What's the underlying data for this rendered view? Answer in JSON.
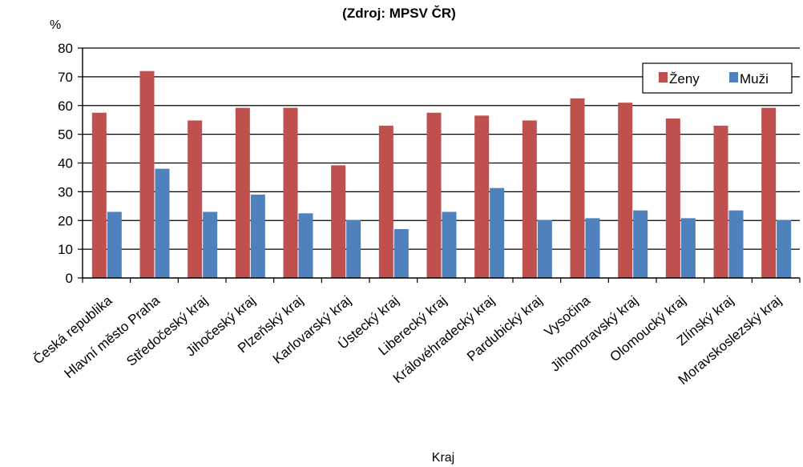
{
  "chart_data": {
    "type": "bar",
    "title": "(Zdroj: MPSV ČR)",
    "ylabel": "%",
    "xlabel": "Kraj",
    "ylim": [
      0,
      80
    ],
    "yticks": [
      0,
      10,
      20,
      30,
      40,
      50,
      60,
      70,
      80
    ],
    "grid": true,
    "legend": "top-right",
    "categories": [
      "Česká republika",
      "Hlavní město Praha",
      "Středočeský kraj",
      "Jihočeský kraj",
      "Plzeňský kraj",
      "Karlovarský kraj",
      "Ústecký kraj",
      "Liberecký kraj",
      "Královéhradecký kraj",
      "Pardubický kraj",
      "Vysočina",
      "Jihomoravský kraj",
      "Olomoucký kraj",
      "Zlínský kraj",
      "Moravskoslezský kraj"
    ],
    "series": [
      {
        "name": "Ženy",
        "color": "#C0504D",
        "values": [
          57.5,
          72,
          54.8,
          59.2,
          59.2,
          39.2,
          53,
          57.5,
          56.5,
          54.8,
          62.5,
          61,
          55.5,
          53,
          59.2
        ]
      },
      {
        "name": "Muži",
        "color": "#4F81BD",
        "values": [
          23,
          38,
          23,
          29,
          22.5,
          20.2,
          17,
          23,
          31.3,
          20.2,
          20.8,
          23.5,
          20.8,
          23.5,
          20.2
        ]
      }
    ]
  }
}
